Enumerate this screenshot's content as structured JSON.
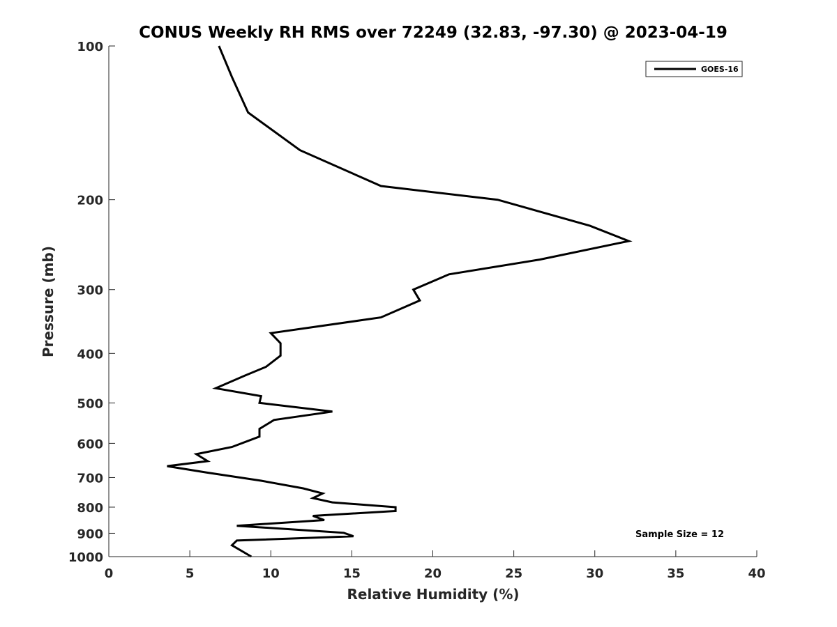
{
  "chart_data": {
    "type": "line",
    "title": "CONUS Weekly RH RMS over 72249 (32.83, -97.30) @ 2023-04-19",
    "xlabel": "Relative Humidity (%)",
    "ylabel": "Pressure (mb)",
    "xlim": [
      0,
      40
    ],
    "ylim": [
      100,
      1000
    ],
    "y_scale": "log",
    "y_inverted": true,
    "x_ticks": [
      0,
      5,
      10,
      15,
      20,
      25,
      30,
      35,
      40
    ],
    "y_ticks": [
      100,
      200,
      300,
      400,
      500,
      600,
      700,
      800,
      900,
      1000
    ],
    "grid": false,
    "legend_position": "top-right",
    "annotation": "Sample Size = 12",
    "line_color": "#000000",
    "series": [
      {
        "name": "GOES-16",
        "points": [
          [
            6.8,
            100
          ],
          [
            7.6,
            115
          ],
          [
            8.6,
            135
          ],
          [
            11.8,
            160
          ],
          [
            16.8,
            188
          ],
          [
            24.0,
            200
          ],
          [
            29.7,
            225
          ],
          [
            32.1,
            241
          ],
          [
            26.6,
            262
          ],
          [
            21.0,
            280
          ],
          [
            18.8,
            300
          ],
          [
            19.2,
            315
          ],
          [
            16.8,
            340
          ],
          [
            10.0,
            365
          ],
          [
            10.6,
            382
          ],
          [
            10.6,
            404
          ],
          [
            9.7,
            425
          ],
          [
            8.4,
            442
          ],
          [
            6.6,
            468
          ],
          [
            9.4,
            485
          ],
          [
            9.3,
            500
          ],
          [
            13.8,
            520
          ],
          [
            10.2,
            540
          ],
          [
            9.3,
            562
          ],
          [
            9.3,
            582
          ],
          [
            7.6,
            610
          ],
          [
            5.4,
            630
          ],
          [
            6.1,
            650
          ],
          [
            3.6,
            665
          ],
          [
            6.0,
            684
          ],
          [
            9.4,
            710
          ],
          [
            12.0,
            735
          ],
          [
            13.2,
            752
          ],
          [
            12.6,
            768
          ],
          [
            13.8,
            783
          ],
          [
            17.7,
            800
          ],
          [
            17.7,
            814
          ],
          [
            12.6,
            832
          ],
          [
            13.3,
            848
          ],
          [
            7.9,
            870
          ],
          [
            14.5,
            898
          ],
          [
            15.1,
            912
          ],
          [
            7.9,
            930
          ],
          [
            7.6,
            950
          ],
          [
            8.8,
            1000
          ]
        ]
      }
    ]
  }
}
